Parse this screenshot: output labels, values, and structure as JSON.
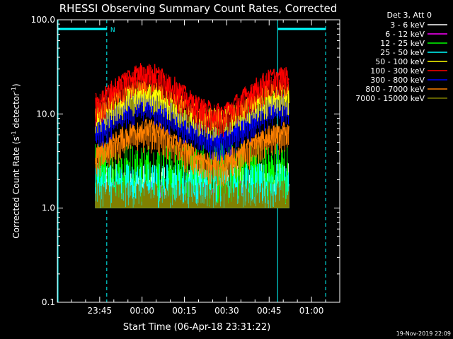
{
  "chart_data": {
    "type": "line",
    "title": "RHESSI Observing Summary Count Rates, Corrected",
    "xlabel": "Start Time (06-Apr-18 23:31:22)",
    "ylabel_main": "Corrected Count Rate (s",
    "ylabel_sup1": "-1",
    "ylabel_mid": " detector",
    "ylabel_sup2": "-1",
    "ylabel_end": ")",
    "yscale": "log",
    "ylim": [
      0.1,
      100.0
    ],
    "y_ticks": [
      {
        "value": 0.1,
        "label": "0.1"
      },
      {
        "value": 1.0,
        "label": "1.0"
      },
      {
        "value": 10.0,
        "label": "10.0"
      },
      {
        "value": 100.0,
        "label": "100.0"
      }
    ],
    "xlim_minutes_after_2330": [
      0,
      100
    ],
    "x_ticks": [
      {
        "minutes_after_2330": 15,
        "label": "23:45"
      },
      {
        "minutes_after_2330": 30,
        "label": "00:00"
      },
      {
        "minutes_after_2330": 45,
        "label": "00:15"
      },
      {
        "minutes_after_2330": 60,
        "label": "00:30"
      },
      {
        "minutes_after_2330": 75,
        "label": "00:45"
      },
      {
        "minutes_after_2330": 90,
        "label": "01:00"
      }
    ],
    "legend_header": "Det 3, Att 0",
    "series": [
      {
        "name": "3 - 6 keV",
        "color": "#ffffff",
        "level": [
          1.0,
          3.0
        ],
        "style": "noise"
      },
      {
        "name": "6 - 12 keV",
        "color": "#ff00ff",
        "level": [
          1.0,
          2.0
        ],
        "style": "noise"
      },
      {
        "name": "12 - 25 keV",
        "color": "#00ff00",
        "level": [
          1.0,
          5.0
        ],
        "style": "noise"
      },
      {
        "name": "25 - 50 keV",
        "color": "#00ffff",
        "level": [
          1.0,
          3.0
        ],
        "style": "noise"
      },
      {
        "name": "50 - 100 keV",
        "color": "#ffff00",
        "peaks": [
          18,
          17
        ],
        "trough": 9
      },
      {
        "name": "100 - 300 keV",
        "color": "#ff0000",
        "peaks": [
          28,
          25
        ],
        "trough": 10
      },
      {
        "name": "300 - 800 keV",
        "color": "#0000ff",
        "peaks": [
          14,
          13
        ],
        "trough": 5.5
      },
      {
        "name": "800 - 7000 keV",
        "color": "#ff8000",
        "peaks": [
          7,
          6.5
        ],
        "trough": 3
      },
      {
        "name": "7000 - 15000 keV",
        "color": "#808000",
        "level": [
          1.0,
          2.0
        ],
        "style": "noise"
      }
    ],
    "data_range_minutes_after_2330": [
      13.5,
      82
    ],
    "saa_marker_label": "N",
    "saa_intervals_minutes_after_2330": [
      [
        0,
        17.5
      ],
      [
        78,
        95
      ]
    ],
    "grid": false
  },
  "footer": {
    "timestamp": "19-Nov-2019 22:09"
  }
}
